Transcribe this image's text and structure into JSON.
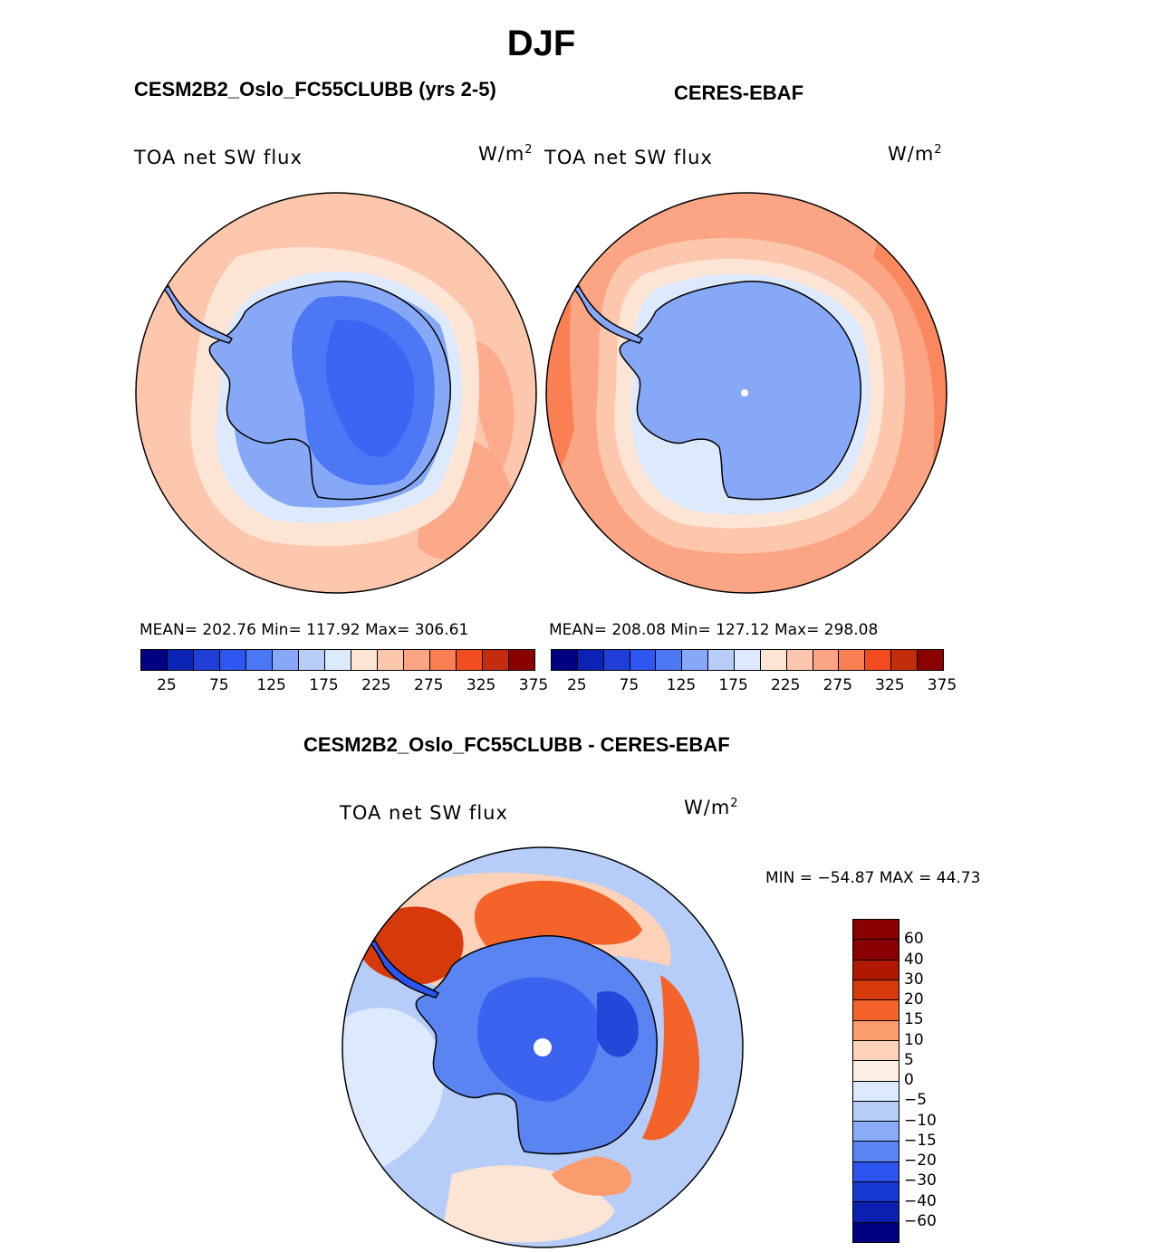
{
  "title": "DJF",
  "panels": [
    {
      "title": "CESM2B2_Oslo_FC55CLUBB (yrs 2-5)",
      "variable": "TOA net SW flux",
      "units_base": "W/m",
      "units_exp": "2",
      "stats": "MEAN= 202.76   Min= 117.92   Max= 306.61"
    },
    {
      "title": "CERES-EBAF",
      "variable": "TOA net SW flux",
      "units_base": "W/m",
      "units_exp": "2",
      "stats": "MEAN= 208.08   Min= 127.12   Max= 298.08"
    },
    {
      "title": "CESM2B2_Oslo_FC55CLUBB - CERES-EBAF",
      "variable": "TOA net SW flux",
      "units_base": "W/m",
      "units_exp": "2",
      "stats": "MIN = −54.87 MAX =  44.73"
    }
  ],
  "abs_colorbar": {
    "colors": [
      "#000080",
      "#0a23b4",
      "#1f3fd8",
      "#2f56f0",
      "#4d78f5",
      "#87a8f7",
      "#b8cdf8",
      "#dde9fc",
      "#fde5d6",
      "#fcc7ad",
      "#fba584",
      "#fa7f52",
      "#f24d1e",
      "#c42d0c",
      "#8a0000"
    ],
    "tick_labels": [
      "25",
      "75",
      "125",
      "175",
      "225",
      "275",
      "325",
      "375"
    ]
  },
  "diff_colorbar": {
    "colors": [
      "#8a0000",
      "#b01900",
      "#d73a0a",
      "#f4642a",
      "#fb9c6f",
      "#fdd2b8",
      "#fdeee4",
      "#dde9fc",
      "#b5cdf8",
      "#8aacf7",
      "#5a84f2",
      "#2c55ef",
      "#1638d2",
      "#0b20b0",
      "#000080"
    ],
    "tick_labels": [
      "60",
      "40",
      "30",
      "20",
      "15",
      "10",
      "5",
      "0",
      "−5",
      "−10",
      "−15",
      "−20",
      "−30",
      "−40",
      "−60"
    ]
  },
  "chart_data": [
    {
      "type": "heatmap",
      "title": "CESM2B2_Oslo_FC55CLUBB (yrs 2-5)",
      "variable": "TOA net SW flux",
      "units": "W/m2",
      "projection": "south polar stereographic",
      "mean": 202.76,
      "min": 117.92,
      "max": 306.61,
      "levels": [
        25,
        50,
        75,
        100,
        125,
        150,
        175,
        200,
        225,
        250,
        275,
        300,
        325,
        350,
        375
      ]
    },
    {
      "type": "heatmap",
      "title": "CERES-EBAF",
      "variable": "TOA net SW flux",
      "units": "W/m2",
      "projection": "south polar stereographic",
      "mean": 208.08,
      "min": 127.12,
      "max": 298.08,
      "levels": [
        25,
        50,
        75,
        100,
        125,
        150,
        175,
        200,
        225,
        250,
        275,
        300,
        325,
        350,
        375
      ]
    },
    {
      "type": "heatmap",
      "title": "CESM2B2_Oslo_FC55CLUBB - CERES-EBAF",
      "variable": "TOA net SW flux",
      "units": "W/m2",
      "projection": "south polar stereographic",
      "min": -54.87,
      "max": 44.73,
      "levels": [
        -60,
        -40,
        -30,
        -20,
        -15,
        -10,
        -5,
        0,
        5,
        10,
        15,
        20,
        30,
        40,
        60
      ]
    }
  ]
}
